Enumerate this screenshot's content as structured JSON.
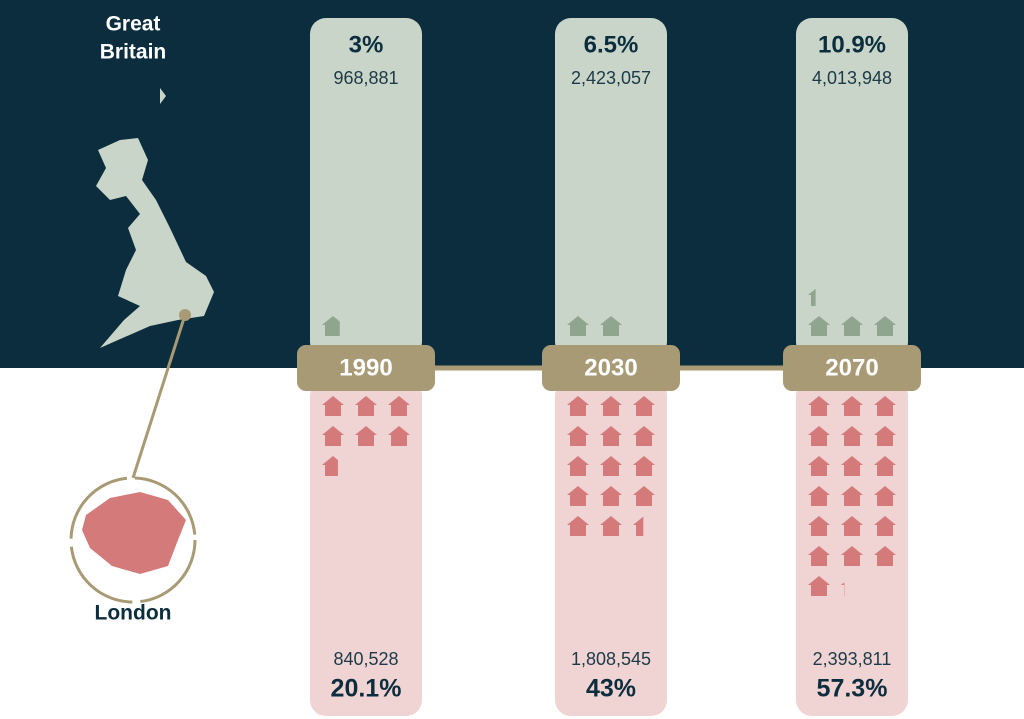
{
  "regions": {
    "great_britain": {
      "line1": "Great",
      "line2": "Britain"
    },
    "london": "London"
  },
  "columns": [
    {
      "year": "1990",
      "gb": {
        "share": "3%",
        "count": {
          "value": 968881,
          "label": "968,881"
        }
      },
      "london": {
        "count": {
          "value": 840528,
          "label": "840,528"
        },
        "share": "20.1%"
      }
    },
    {
      "year": "2030",
      "gb": {
        "share": "6.5%",
        "count": {
          "value": 2423057,
          "label": "2,423,057"
        }
      },
      "london": {
        "count": {
          "value": 1808545,
          "label": "1,808,545"
        },
        "share": "43%"
      }
    },
    {
      "year": "2070",
      "gb": {
        "share": "10.9%",
        "count": {
          "value": 4013948,
          "label": "4,013,948"
        }
      },
      "london": {
        "count": {
          "value": 2393811,
          "label": "2,393,811"
        },
        "share": "57.3%"
      }
    }
  ]
}
